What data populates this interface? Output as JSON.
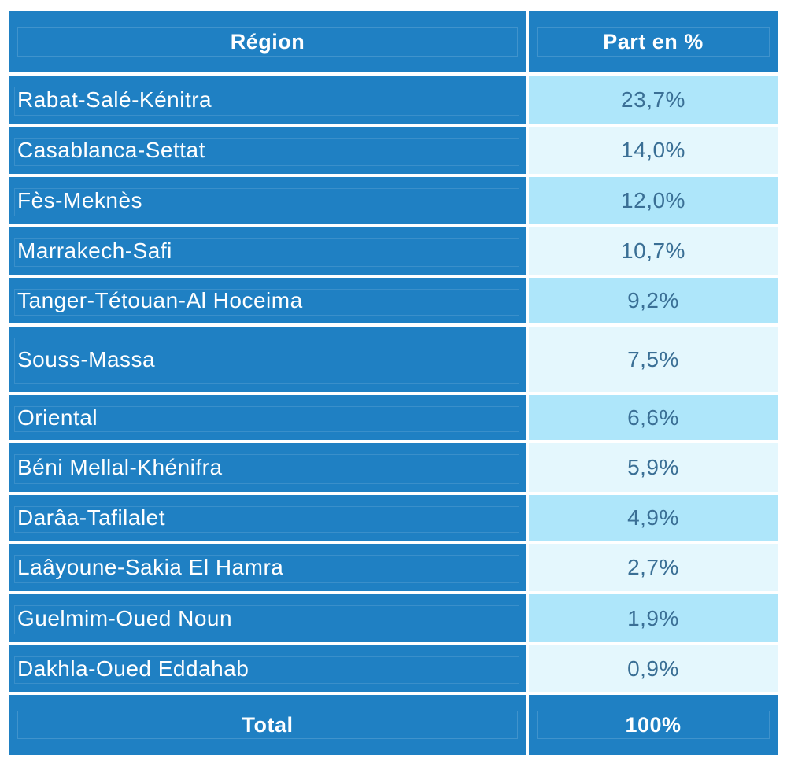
{
  "chart_data": {
    "type": "table",
    "columns": [
      "Région",
      "Part en %"
    ],
    "rows": [
      {
        "region": "Rabat-Salé-Kénitra",
        "share": "23,7%"
      },
      {
        "region": "Casablanca-Settat",
        "share": "14,0%"
      },
      {
        "region": "Fès-Meknès",
        "share": "12,0%"
      },
      {
        "region": "Marrakech-Safi",
        "share": "10,7%"
      },
      {
        "region": "Tanger-Tétouan-Al Hoceima",
        "share": "9,2%"
      },
      {
        "region": "Souss-Massa",
        "share": "7,5%"
      },
      {
        "region": "Oriental",
        "share": "6,6%"
      },
      {
        "region": "Béni Mellal-Khénifra",
        "share": "5,9%"
      },
      {
        "region": "Darâa-Tafilalet",
        "share": "4,9%"
      },
      {
        "region": "Laâyoune-Sakia El Hamra",
        "share": "2,7%"
      },
      {
        "region": "Guelmim-Oued Noun",
        "share": "1,9%"
      },
      {
        "region": "Dakhla-Oued Eddahab",
        "share": "0,9%"
      }
    ],
    "values": [
      23.7,
      14.0,
      12.0,
      10.7,
      9.2,
      7.5,
      6.6,
      5.9,
      4.9,
      2.7,
      1.9,
      0.9
    ],
    "total": {
      "label": "Total",
      "share": "100%"
    }
  },
  "colors": {
    "header": "#1f80c3",
    "row_alt_a": "#aee6fa",
    "row_alt_b": "#e4f7fd",
    "value_text": "#3a6f95"
  }
}
